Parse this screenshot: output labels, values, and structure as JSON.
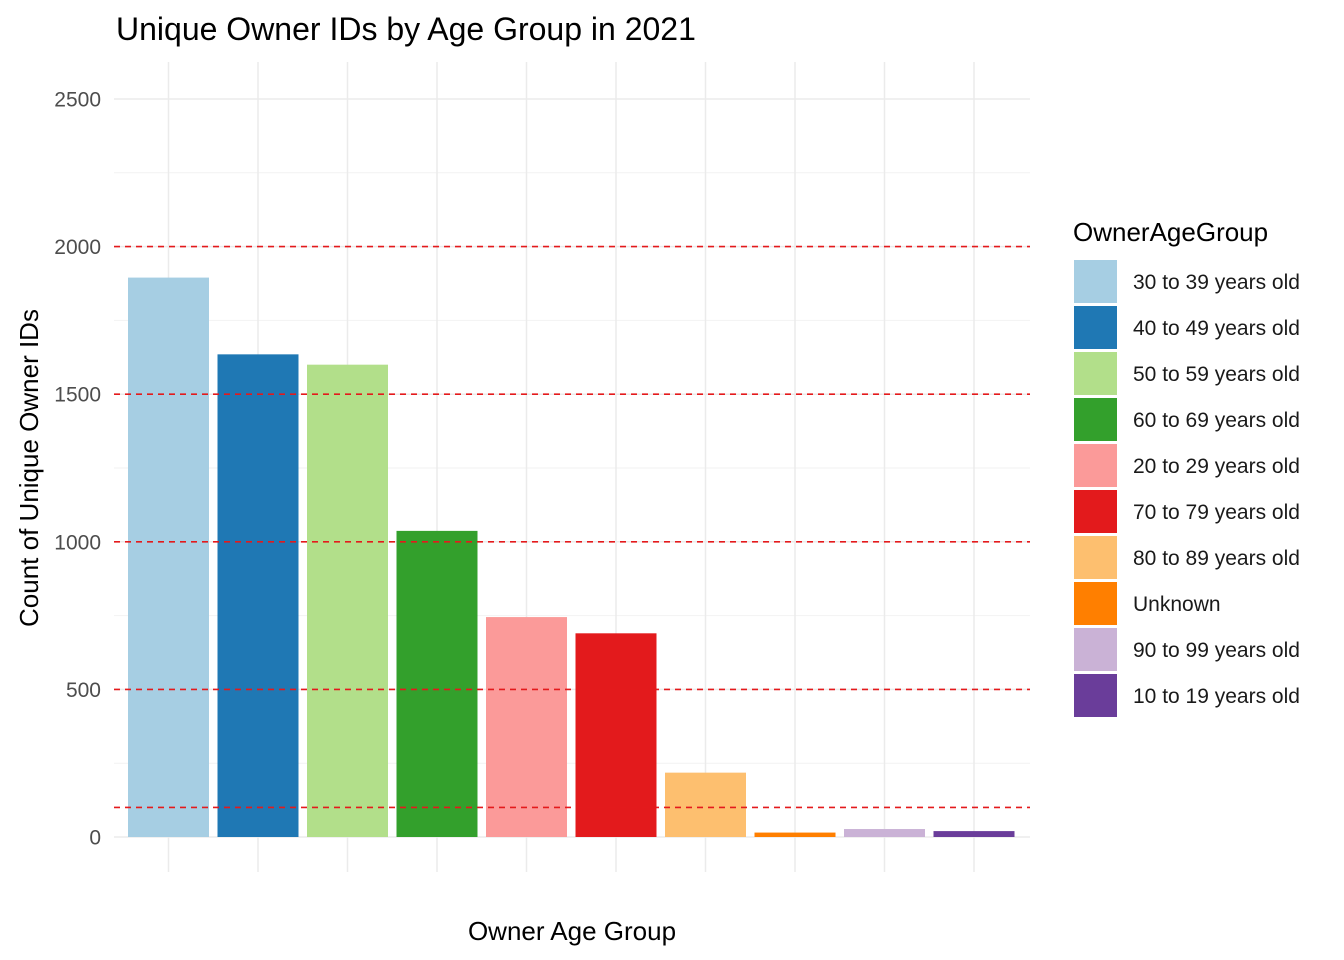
{
  "chart_data": {
    "type": "bar",
    "title": "Unique Owner IDs by Age Group in 2021",
    "xlabel": "Owner Age Group",
    "ylabel": "Count of Unique Owner IDs",
    "ylim": [
      0,
      2500
    ],
    "yticks": [
      0,
      500,
      1000,
      1500,
      2000,
      2500
    ],
    "x_tick_labels_shown": false,
    "grid": true,
    "reference_lines": [
      100,
      500,
      1000,
      1500,
      2000
    ],
    "reference_line_color": "#e41a1c",
    "legend": {
      "title": "OwnerAgeGroup",
      "position": "right"
    },
    "categories": [
      "30 to 39 years old",
      "40 to 49 years old",
      "50 to 59 years old",
      "60 to 69 years old",
      "20 to 29 years old",
      "70 to 79 years old",
      "80 to 89 years old",
      "Unknown",
      "90 to 99 years old",
      "10 to 19 years old"
    ],
    "values": [
      1895,
      1635,
      1600,
      1037,
      745,
      690,
      218,
      15,
      27,
      20
    ],
    "colors": [
      "#a6cee3",
      "#1f78b4",
      "#b2df8a",
      "#33a02c",
      "#fb9a99",
      "#e31a1c",
      "#fdbf6f",
      "#ff7f00",
      "#cab2d6",
      "#6a3d9a"
    ]
  }
}
